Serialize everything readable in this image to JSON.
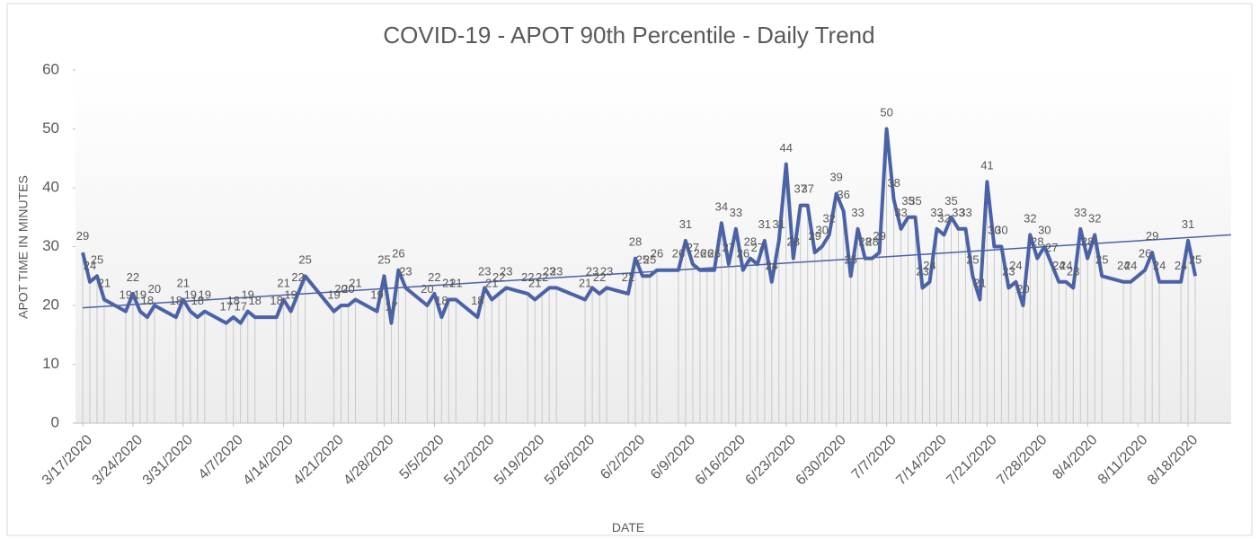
{
  "chart_data": {
    "type": "line",
    "title": "COVID-19 - APOT 90th Percentile - Daily Trend",
    "x_label": "DATE",
    "y_label": "APOT TIME IN MINUTES",
    "x": [
      "3/17/2020",
      "3/18/2020",
      "3/19/2020",
      "3/20/2020",
      "3/23/2020",
      "3/24/2020",
      "3/25/2020",
      "3/26/2020",
      "3/27/2020",
      "3/30/2020",
      "3/31/2020",
      "4/1/2020",
      "4/2/2020",
      "4/3/2020",
      "4/6/2020",
      "4/7/2020",
      "4/8/2020",
      "4/9/2020",
      "4/10/2020",
      "4/13/2020",
      "4/14/2020",
      "4/15/2020",
      "4/16/2020",
      "4/17/2020",
      "4/21/2020",
      "4/22/2020",
      "4/23/2020",
      "4/24/2020",
      "4/27/2020",
      "4/28/2020",
      "4/29/2020",
      "4/30/2020",
      "5/1/2020",
      "5/4/2020",
      "5/5/2020",
      "5/6/2020",
      "5/7/2020",
      "5/8/2020",
      "5/11/2020",
      "5/12/2020",
      "5/13/2020",
      "5/14/2020",
      "5/15/2020",
      "5/18/2020",
      "5/19/2020",
      "5/20/2020",
      "5/21/2020",
      "5/22/2020",
      "5/26/2020",
      "5/27/2020",
      "5/28/2020",
      "5/29/2020",
      "6/1/2020",
      "6/2/2020",
      "6/3/2020",
      "6/4/2020",
      "6/5/2020",
      "6/8/2020",
      "6/9/2020",
      "6/10/2020",
      "6/11/2020",
      "6/12/2020",
      "6/13/2020",
      "6/14/2020",
      "6/15/2020",
      "6/16/2020",
      "6/17/2020",
      "6/18/2020",
      "6/19/2020",
      "6/20/2020",
      "6/21/2020",
      "6/22/2020",
      "6/23/2020",
      "6/24/2020",
      "6/25/2020",
      "6/26/2020",
      "6/27/2020",
      "6/28/2020",
      "6/29/2020",
      "6/30/2020",
      "7/1/2020",
      "7/2/2020",
      "7/3/2020",
      "7/4/2020",
      "7/5/2020",
      "7/6/2020",
      "7/7/2020",
      "7/8/2020",
      "7/9/2020",
      "7/10/2020",
      "7/11/2020",
      "7/12/2020",
      "7/13/2020",
      "7/14/2020",
      "7/15/2020",
      "7/16/2020",
      "7/17/2020",
      "7/18/2020",
      "7/19/2020",
      "7/20/2020",
      "7/21/2020",
      "7/22/2020",
      "7/23/2020",
      "7/24/2020",
      "7/25/2020",
      "7/26/2020",
      "7/27/2020",
      "7/28/2020",
      "7/29/2020",
      "7/30/2020",
      "7/31/2020",
      "8/1/2020",
      "8/2/2020",
      "8/3/2020",
      "8/4/2020",
      "8/5/2020",
      "8/6/2020",
      "8/9/2020",
      "8/10/2020",
      "8/12/2020",
      "8/13/2020",
      "8/14/2020",
      "8/17/2020",
      "8/18/2020",
      "8/19/2020"
    ],
    "series": [
      {
        "name": "APOT 90th Percentile",
        "color": "#4a62a8",
        "values": [
          29,
          24,
          25,
          21,
          19,
          22,
          19,
          18,
          20,
          18,
          21,
          19,
          18,
          19,
          17,
          18,
          17,
          19,
          18,
          18,
          21,
          19,
          22,
          25,
          19,
          20,
          20,
          21,
          19,
          25,
          17,
          26,
          23,
          20,
          22,
          18,
          21,
          21,
          18,
          23,
          21,
          22,
          23,
          22,
          21,
          22,
          23,
          23,
          21,
          23,
          22,
          23,
          22,
          28,
          25,
          25,
          26,
          26,
          31,
          27,
          26,
          26,
          26,
          34,
          27,
          33,
          26,
          28,
          27,
          31,
          24,
          31,
          44,
          28,
          37,
          37,
          29,
          30,
          32,
          39,
          36,
          25,
          33,
          28,
          28,
          29,
          50,
          38,
          33,
          35,
          35,
          23,
          24,
          33,
          32,
          35,
          33,
          33,
          25,
          21,
          41,
          30,
          30,
          23,
          24,
          20,
          32,
          28,
          30,
          27,
          24,
          24,
          23,
          33,
          28,
          32,
          25,
          24,
          24,
          26,
          29,
          24,
          24,
          31,
          25
        ]
      }
    ],
    "trendline": {
      "x": [
        "3/17/2020",
        "8/24/2020"
      ],
      "values": [
        19.6,
        32
      ]
    },
    "xlim": [
      "3/16/2020",
      "8/24/2020"
    ],
    "xticks": [
      "3/17/2020",
      "3/24/2020",
      "3/31/2020",
      "4/7/2020",
      "4/14/2020",
      "4/21/2020",
      "4/28/2020",
      "5/5/2020",
      "5/12/2020",
      "5/19/2020",
      "5/26/2020",
      "6/2/2020",
      "6/9/2020",
      "6/16/2020",
      "6/23/2020",
      "6/30/2020",
      "7/7/2020",
      "7/14/2020",
      "7/21/2020",
      "7/28/2020",
      "8/4/2020",
      "8/11/2020",
      "8/18/2020"
    ],
    "ylim": [
      0,
      60
    ],
    "yticks": [
      0,
      10,
      20,
      30,
      40,
      50,
      60
    ]
  }
}
